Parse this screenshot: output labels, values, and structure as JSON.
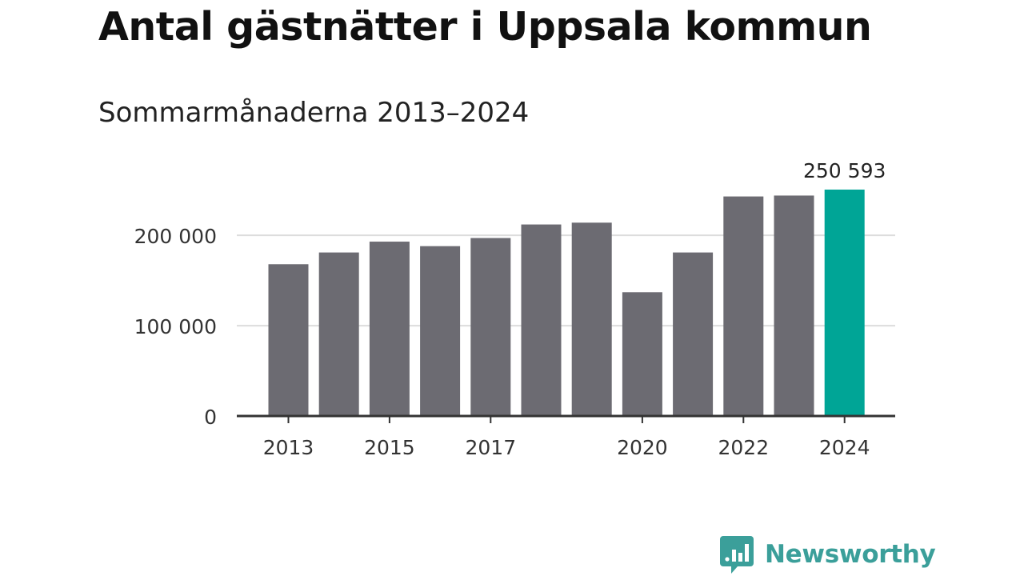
{
  "header": {
    "title": "Antal gästnätter i Uppsala kommun",
    "subtitle": "Sommarmånaderna 2013–2024"
  },
  "brand": {
    "name": "Newsworthy",
    "icon": "bar-chart-speech-bubble-icon",
    "color": "#3b9f9a"
  },
  "colors": {
    "bar": "#6c6b72",
    "highlight": "#00a596",
    "grid": "#dcdcdc",
    "axis": "#333333",
    "text": "#333333"
  },
  "chart_data": {
    "type": "bar",
    "title": "Antal gästnätter i Uppsala kommun",
    "subtitle": "Sommarmånaderna 2013–2024",
    "categories": [
      "2013",
      "2014",
      "2015",
      "2016",
      "2017",
      "2018",
      "2019",
      "2020",
      "2021",
      "2022",
      "2023",
      "2024"
    ],
    "values": [
      168000,
      181000,
      193000,
      188000,
      197000,
      212000,
      214000,
      137000,
      181000,
      243000,
      244000,
      250593
    ],
    "highlight_index": 11,
    "data_labels": [
      {
        "index": 11,
        "text": "250 593"
      }
    ],
    "x_tick_labels": [
      "2013",
      "2015",
      "2017",
      "2020",
      "2022",
      "2024"
    ],
    "y_ticks": [
      {
        "value": 0,
        "label": "0"
      },
      {
        "value": 100000,
        "label": "100 000"
      },
      {
        "value": 200000,
        "label": "200 000"
      }
    ],
    "ylim": [
      0,
      250593
    ],
    "xlabel": "",
    "ylabel": "",
    "grid": true,
    "legend": "none"
  }
}
